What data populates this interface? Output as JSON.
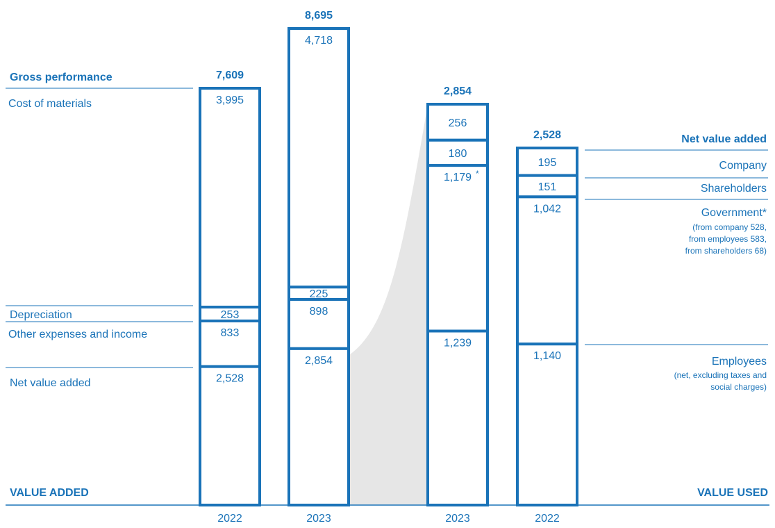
{
  "colors": {
    "accent": "#1a73b8",
    "shade": "#e6e6e6"
  },
  "chart_data": {
    "type": "bar",
    "subtype": "stacked value-added / value-used statement",
    "left_heading": "VALUE ADDED",
    "right_heading": "VALUE USED",
    "left_labels": {
      "gross": "Gross performance",
      "materials": "Cost of materials",
      "depreciation": "Depreciation",
      "other": "Other expenses and income",
      "net": "Net value added"
    },
    "right_labels": {
      "net": "Net value added",
      "company": "Company",
      "shareholders": "Shareholders",
      "government": "Government*",
      "government_note": [
        "(from company 528,",
        "from employees 583,",
        "from shareholders 68)"
      ],
      "employees": "Employees",
      "employees_note": [
        "(net, excluding taxes and",
        "social charges)"
      ]
    },
    "bars": [
      {
        "id": "added2022",
        "year": "2022",
        "total": "7,609",
        "segments": [
          {
            "key": "materials",
            "value": 3995,
            "label": "3,995"
          },
          {
            "key": "depreciation",
            "value": 253,
            "label": "253"
          },
          {
            "key": "other",
            "value": 833,
            "label": "833"
          },
          {
            "key": "net",
            "value": 2528,
            "label": "2,528"
          }
        ]
      },
      {
        "id": "added2023",
        "year": "2023",
        "total": "8,695",
        "segments": [
          {
            "key": "materials",
            "value": 4718,
            "label": "4,718"
          },
          {
            "key": "depreciation",
            "value": 225,
            "label": "225"
          },
          {
            "key": "other",
            "value": 898,
            "label": "898"
          },
          {
            "key": "net",
            "value": 2854,
            "label": "2,854"
          }
        ]
      },
      {
        "id": "used2023",
        "year": "2023",
        "total": "2,854",
        "segments": [
          {
            "key": "company",
            "value": 256,
            "label": "256"
          },
          {
            "key": "shareholders",
            "value": 180,
            "label": "180"
          },
          {
            "key": "government",
            "value": 1179,
            "label": "1,179",
            "marker": "*"
          },
          {
            "key": "employees",
            "value": 1239,
            "label": "1,239"
          }
        ]
      },
      {
        "id": "used2022",
        "year": "2022",
        "total": "2,528",
        "segments": [
          {
            "key": "company",
            "value": 195,
            "label": "195"
          },
          {
            "key": "shareholders",
            "value": 151,
            "label": "151"
          },
          {
            "key": "government",
            "value": 1042,
            "label": "1,042"
          },
          {
            "key": "employees",
            "value": 1140,
            "label": "1,140"
          }
        ]
      }
    ]
  }
}
